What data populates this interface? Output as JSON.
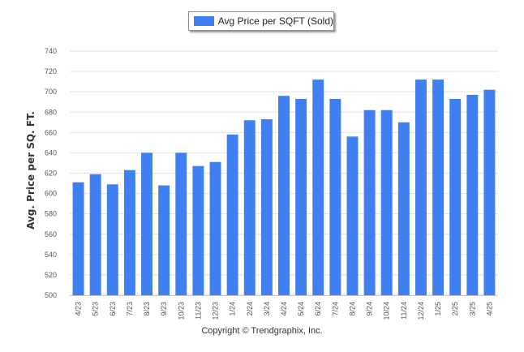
{
  "chart_data": {
    "type": "bar",
    "title": "",
    "xlabel": "",
    "ylabel": "Avg. Price per SQ. FT.",
    "ylim": [
      500,
      740
    ],
    "yticks": [
      500,
      520,
      540,
      560,
      580,
      600,
      620,
      640,
      660,
      680,
      700,
      720,
      740
    ],
    "grid": true,
    "legend_position": "top-center",
    "categories": [
      "4/23",
      "5/23",
      "6/23",
      "7/23",
      "8/23",
      "9/23",
      "10/23",
      "11/23",
      "12/23",
      "1/24",
      "2/24",
      "3/24",
      "4/24",
      "5/24",
      "6/24",
      "7/24",
      "8/24",
      "9/24",
      "10/24",
      "11/24",
      "12/24",
      "1/25",
      "2/25",
      "3/25",
      "4/25"
    ],
    "series": [
      {
        "name": "Avg Price per SQFT (Sold)",
        "color": "#3f7ff0",
        "values": [
          611,
          619,
          609,
          623,
          640,
          608,
          640,
          627,
          631,
          658,
          672,
          673,
          696,
          693,
          712,
          693,
          656,
          682,
          682,
          670,
          712,
          712,
          693,
          697,
          702
        ]
      }
    ]
  },
  "credit": "Copyright © Trendgraphix, Inc."
}
